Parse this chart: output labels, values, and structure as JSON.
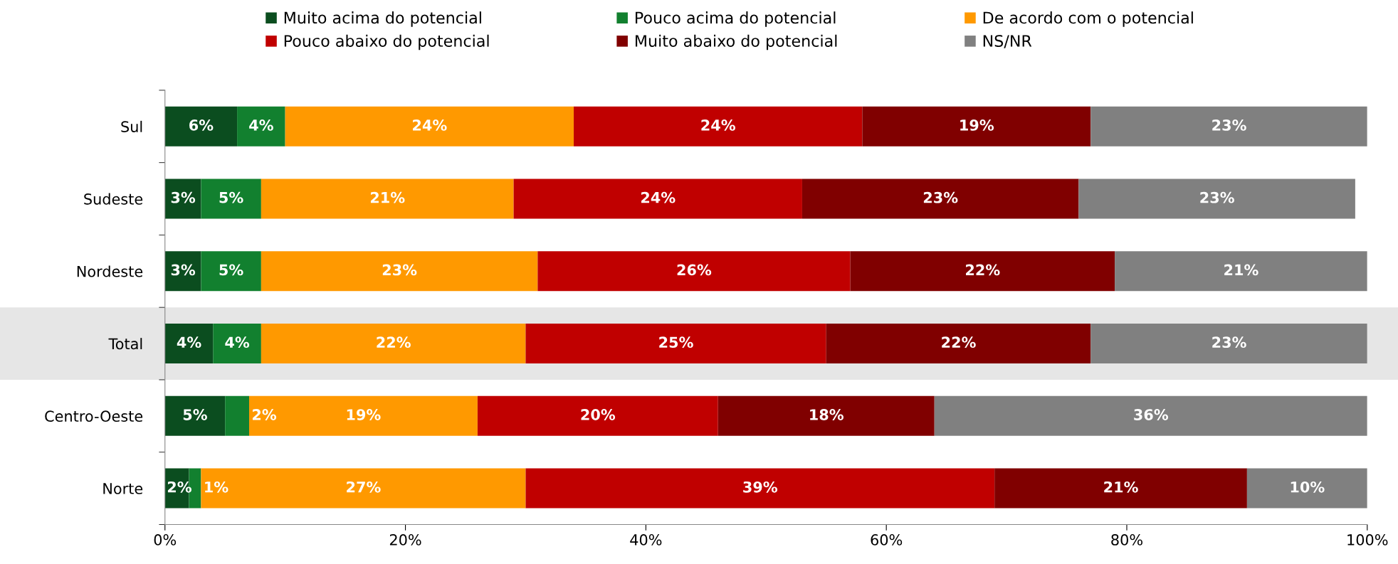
{
  "chart_data": {
    "type": "bar",
    "orientation": "horizontal",
    "stacked": true,
    "categories": [
      "Sul",
      "Sudeste",
      "Nordeste",
      "Total",
      "Centro-Oeste",
      "Norte"
    ],
    "series": [
      {
        "name": "Muito acima do potencial",
        "color": "#0b4d1f",
        "values": [
          6,
          3,
          3,
          4,
          5,
          2
        ],
        "value_labels": [
          "6%",
          "3%",
          "3%",
          "4%",
          "5%",
          "2%"
        ]
      },
      {
        "name": "Pouco acima do potencial",
        "color": "#12802f",
        "values": [
          4,
          5,
          5,
          4,
          2,
          1
        ],
        "value_labels": [
          "4%",
          "5%",
          "5%",
          "4%",
          "2%",
          "1%"
        ]
      },
      {
        "name": "De acordo com o potencial",
        "color": "#ff9900",
        "values": [
          24,
          21,
          23,
          22,
          19,
          27
        ],
        "value_labels": [
          "24%",
          "21%",
          "23%",
          "22%",
          "19%",
          "27%"
        ]
      },
      {
        "name": "Pouco abaixo do potencial",
        "color": "#c00000",
        "values": [
          24,
          24,
          26,
          25,
          20,
          39
        ],
        "value_labels": [
          "24%",
          "24%",
          "26%",
          "25%",
          "20%",
          "39%"
        ]
      },
      {
        "name": "Muito abaixo do potencial",
        "color": "#800000",
        "values": [
          19,
          23,
          22,
          22,
          18,
          21
        ],
        "value_labels": [
          "19%",
          "23%",
          "22%",
          "22%",
          "18%",
          "21%"
        ]
      },
      {
        "name": "NS/NR",
        "color": "#808080",
        "values": [
          23,
          23,
          21,
          23,
          36,
          10
        ],
        "value_labels": [
          "23%",
          "23%",
          "21%",
          "23%",
          "36%",
          "10%"
        ]
      }
    ],
    "xlim": [
      0,
      100
    ],
    "xticks": [
      {
        "value": 0,
        "label": "0%"
      },
      {
        "value": 20,
        "label": "20%"
      },
      {
        "value": 40,
        "label": "40%"
      },
      {
        "value": 60,
        "label": "60%"
      },
      {
        "value": 80,
        "label": "80%"
      },
      {
        "value": 100,
        "label": "100%"
      }
    ],
    "bands": [
      {
        "axis": "y",
        "from": "Total",
        "to": "Total",
        "color": "#e6e6e6"
      }
    ],
    "legend": "top",
    "grid": false
  }
}
